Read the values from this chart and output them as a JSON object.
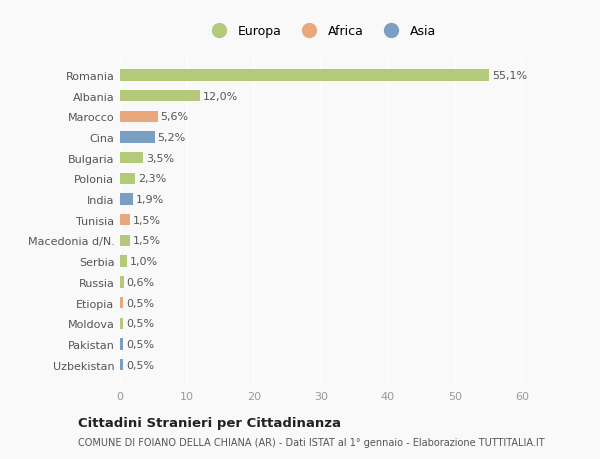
{
  "countries": [
    "Romania",
    "Albania",
    "Marocco",
    "Cina",
    "Bulgaria",
    "Polonia",
    "India",
    "Tunisia",
    "Macedonia d/N.",
    "Serbia",
    "Russia",
    "Etiopia",
    "Moldova",
    "Pakistan",
    "Uzbekistan"
  ],
  "values": [
    55.1,
    12.0,
    5.6,
    5.2,
    3.5,
    2.3,
    1.9,
    1.5,
    1.5,
    1.0,
    0.6,
    0.5,
    0.5,
    0.5,
    0.5
  ],
  "labels": [
    "55,1%",
    "12,0%",
    "5,6%",
    "5,2%",
    "3,5%",
    "2,3%",
    "1,9%",
    "1,5%",
    "1,5%",
    "1,0%",
    "0,6%",
    "0,5%",
    "0,5%",
    "0,5%",
    "0,5%"
  ],
  "colors": [
    "#b5c97a",
    "#b5c97a",
    "#e8a87c",
    "#7a9fc2",
    "#b5c97a",
    "#b5c97a",
    "#7a9fc2",
    "#e8a87c",
    "#b5c97a",
    "#b5c97a",
    "#b5c97a",
    "#e8a87c",
    "#b5c97a",
    "#7a9fc2",
    "#7a9fc2"
  ],
  "legend_labels": [
    "Europa",
    "Africa",
    "Asia"
  ],
  "legend_colors": [
    "#b5c97a",
    "#e8a87c",
    "#7a9fc2"
  ],
  "xlim": [
    0,
    60
  ],
  "xticks": [
    0,
    10,
    20,
    30,
    40,
    50,
    60
  ],
  "title": "Cittadini Stranieri per Cittadinanza",
  "subtitle": "COMUNE DI FOIANO DELLA CHIANA (AR) - Dati ISTAT al 1° gennaio - Elaborazione TUTTITALIA.IT",
  "bg_color": "#f9f9f9",
  "grid_color": "#e8e8e8",
  "bar_height": 0.55,
  "label_fontsize": 8,
  "ytick_fontsize": 8,
  "xtick_fontsize": 8
}
